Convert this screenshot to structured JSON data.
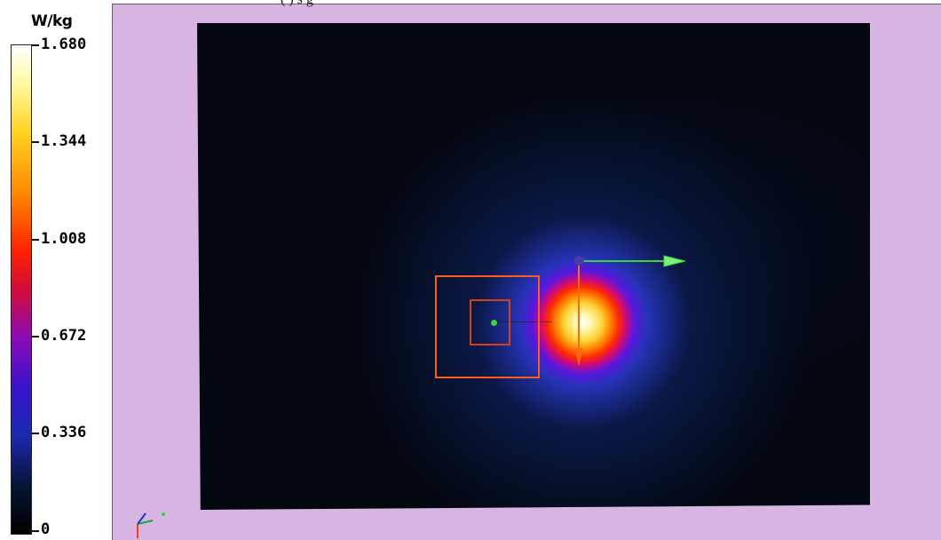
{
  "colorbar": {
    "unit": "W/kg",
    "max": 1.68,
    "min": 0,
    "ticks": [
      "1.680",
      "1.344",
      "1.008",
      "0.672",
      "0.336",
      "0"
    ]
  },
  "viewport": {
    "header_fragment": "(  ) s g",
    "background_color": "#d8b4e2",
    "field_peak_value": 1.68
  },
  "icons": {
    "x_axis_arrow": "green-arrow-right-icon",
    "y_axis_arrow": "orange-arrow-down-icon",
    "orientation_triad": "xyz-triad-icon"
  }
}
